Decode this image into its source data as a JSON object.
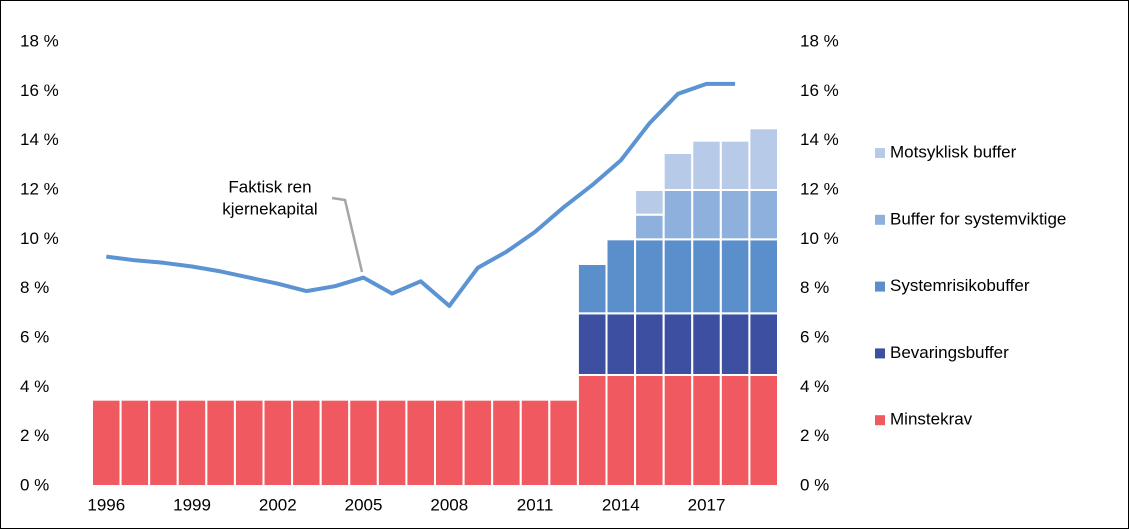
{
  "chart_data": {
    "type": "bar",
    "stacked": true,
    "categories": [
      "1996",
      null,
      null,
      "1999",
      null,
      null,
      "2002",
      null,
      null,
      "2005",
      null,
      null,
      "2008",
      null,
      null,
      "2011",
      null,
      null,
      "2014",
      null,
      null,
      "2017",
      null,
      null
    ],
    "series": [
      {
        "name": "Minstekrav",
        "color": "#f0595f",
        "values": [
          3.5,
          3.5,
          3.5,
          3.5,
          3.5,
          3.5,
          3.5,
          3.5,
          3.5,
          3.5,
          3.5,
          3.5,
          3.5,
          3.5,
          3.5,
          3.5,
          3.5,
          4.5,
          4.5,
          4.5,
          4.5,
          4.5,
          4.5,
          4.5
        ]
      },
      {
        "name": "Bevaringsbuffer",
        "color": "#3c4fa0",
        "values": [
          null,
          null,
          null,
          null,
          null,
          null,
          null,
          null,
          null,
          null,
          null,
          null,
          null,
          null,
          null,
          null,
          null,
          2.5,
          2.5,
          2.5,
          2.5,
          2.5,
          2.5,
          2.5
        ]
      },
      {
        "name": "Systemrisikobuffer",
        "color": "#5a8fcc",
        "values": [
          null,
          null,
          null,
          null,
          null,
          null,
          null,
          null,
          null,
          null,
          null,
          null,
          null,
          null,
          null,
          null,
          null,
          2,
          3,
          3,
          3,
          3,
          3,
          3
        ]
      },
      {
        "name": "Buffer for systemviktige",
        "color": "#8eb0dc",
        "values": [
          null,
          null,
          null,
          null,
          null,
          null,
          null,
          null,
          null,
          null,
          null,
          null,
          null,
          null,
          null,
          null,
          null,
          null,
          null,
          1,
          2,
          2,
          2,
          2
        ]
      },
      {
        "name": "Motsyklisk buffer",
        "color": "#b7cbe8",
        "values": [
          null,
          null,
          null,
          null,
          null,
          null,
          null,
          null,
          null,
          null,
          null,
          null,
          null,
          null,
          null,
          null,
          null,
          null,
          null,
          1,
          1.5,
          2,
          2,
          2.5
        ]
      }
    ],
    "line": {
      "color": "#5b93d3",
      "values": [
        9.3,
        9.15,
        9.05,
        8.9,
        8.7,
        8.45,
        8.2,
        7.9,
        8.1,
        8.45,
        7.8,
        8.3,
        7.3,
        8.85,
        9.5,
        10.3,
        11.3,
        12.2,
        13.2,
        14.7,
        15.9,
        16.3,
        16.3,
        null
      ]
    },
    "annotation": [
      "Faktisk ren",
      "kjernekapital"
    ],
    "ylim": [
      0,
      18
    ],
    "yticks": [
      {
        "value": 0,
        "label": "0 %"
      },
      {
        "value": 2,
        "label": "2 %"
      },
      {
        "value": 4,
        "label": "4 %"
      },
      {
        "value": 6,
        "label": "6 %"
      },
      {
        "value": 8,
        "label": "8 %"
      },
      {
        "value": 10,
        "label": "10 %"
      },
      {
        "value": 12,
        "label": "12 %"
      },
      {
        "value": 14,
        "label": "14 %"
      },
      {
        "value": 16,
        "label": "16 %"
      },
      {
        "value": 18,
        "label": "18 %"
      }
    ],
    "y2lim": [
      0,
      18
    ],
    "y2ticks": [
      {
        "value": 0,
        "label": "0 %"
      },
      {
        "value": 2,
        "label": "2 %"
      },
      {
        "value": 4,
        "label": "4 %"
      },
      {
        "value": 6,
        "label": "6 %"
      },
      {
        "value": 8,
        "label": "8 %"
      },
      {
        "value": 10,
        "label": "10 %"
      },
      {
        "value": 12,
        "label": "12 %"
      },
      {
        "value": 14,
        "label": "14 %"
      },
      {
        "value": 16,
        "label": "16 %"
      },
      {
        "value": 18,
        "label": "18 %"
      }
    ],
    "legend": "right",
    "grid": false
  }
}
